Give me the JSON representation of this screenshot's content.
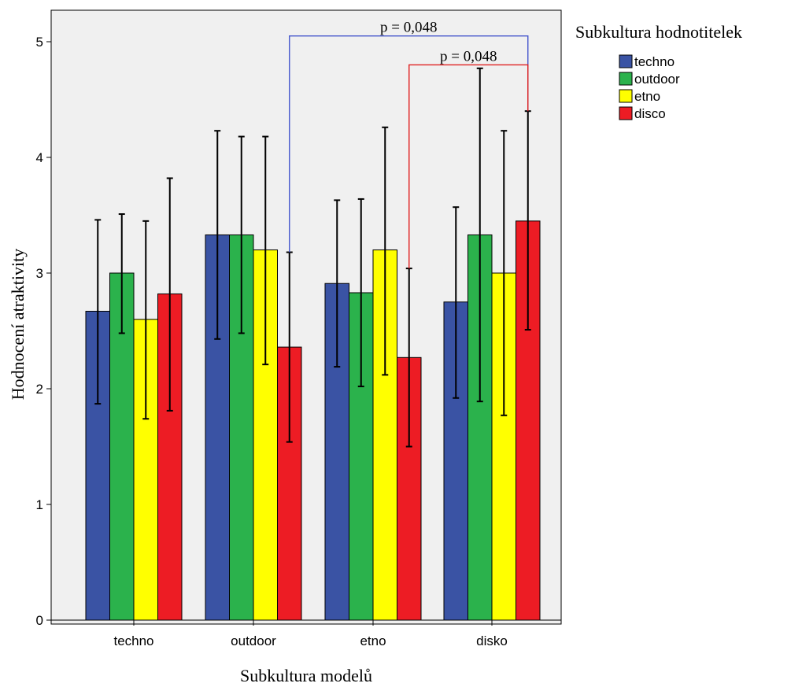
{
  "chart_data": {
    "type": "bar",
    "title": "",
    "xlabel": "Subkultura modelů",
    "ylabel": "Hodnocení atraktivity",
    "ylim": [
      0,
      5.25
    ],
    "yticks": [
      0,
      1,
      2,
      3,
      4,
      5
    ],
    "grid": false,
    "legend_title": "Subkultura hodnotitelek",
    "legend_position": "right",
    "categories": [
      "techno",
      "outdoor",
      "etno",
      "disko"
    ],
    "series": [
      {
        "name": "techno",
        "color": "#3a53a4",
        "values": [
          2.67,
          3.33,
          2.91,
          2.75
        ],
        "error_low": [
          1.87,
          2.43,
          2.19,
          1.92
        ],
        "error_high": [
          3.46,
          4.23,
          3.63,
          3.57
        ]
      },
      {
        "name": "outdoor",
        "color": "#2bb24c",
        "values": [
          3.0,
          3.33,
          2.83,
          3.33
        ],
        "error_low": [
          2.48,
          2.48,
          2.02,
          1.89
        ],
        "error_high": [
          3.51,
          4.18,
          3.64,
          4.77
        ]
      },
      {
        "name": "etno",
        "color": "#ffff00",
        "values": [
          2.6,
          3.2,
          3.2,
          3.0
        ],
        "error_low": [
          1.74,
          2.21,
          2.12,
          1.77
        ],
        "error_high": [
          3.45,
          4.18,
          4.26,
          4.23
        ]
      },
      {
        "name": "disco",
        "color": "#ed1c24",
        "values": [
          2.82,
          2.36,
          2.27,
          3.45
        ],
        "error_low": [
          1.81,
          1.54,
          1.5,
          2.51
        ],
        "error_high": [
          3.82,
          3.18,
          3.04,
          4.4
        ]
      }
    ],
    "annotations": [
      {
        "text": "p = 0,048",
        "color": "#4455cc",
        "from": {
          "category": "outdoor",
          "series": "disco",
          "y": 3.18
        },
        "to": {
          "category": "disko",
          "series": "disco",
          "y": 4.4
        },
        "bracket_y": 5.05
      },
      {
        "text": "p = 0,048",
        "color": "#e02020",
        "from": {
          "category": "etno",
          "series": "disco",
          "y": 3.04
        },
        "to": {
          "category": "disko",
          "series": "disco",
          "y": 4.4
        },
        "bracket_y": 4.8
      }
    ]
  }
}
